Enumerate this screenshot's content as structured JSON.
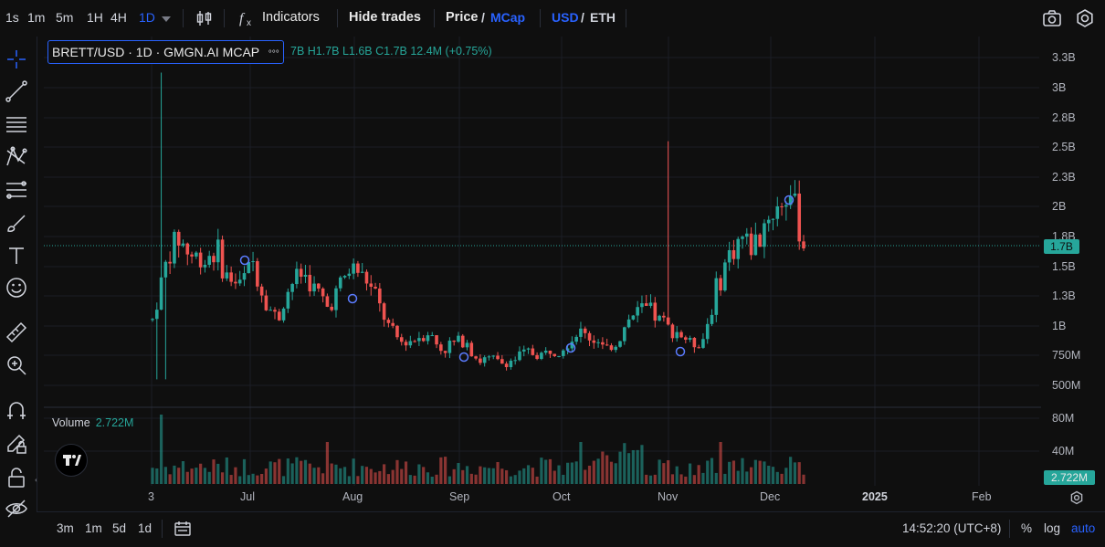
{
  "toolbar": {
    "intervals": [
      "1s",
      "1m",
      "5m",
      "1H",
      "4H",
      "1D"
    ],
    "active_interval": "1D",
    "indicators_label": "Indicators",
    "hide_trades_label": "Hide trades",
    "price_label": "Price",
    "mcap_label": "MCap",
    "usd_label": "USD",
    "eth_label": "ETH",
    "slash": "/"
  },
  "legend": {
    "symbol": "BRETT/USD · 1D · GMGN.AI MCAP",
    "more": "°°°",
    "ohlc": "7B H1.7B L1.6B C1.7B 12.4M (+0.75%)"
  },
  "price_axis": {
    "ticks": [
      "3.3B",
      "3B",
      "2.8B",
      "2.5B",
      "2.3B",
      "2B",
      "1.8B",
      "1.5B",
      "1.3B",
      "1B",
      "750M",
      "500M"
    ],
    "current_price": "1.7B"
  },
  "volume": {
    "label": "Volume",
    "value": "2.722M",
    "ticks": [
      "80M",
      "40M"
    ],
    "current_tag": "2.722M"
  },
  "time_axis": {
    "labels": [
      "3",
      "Jul",
      "Aug",
      "Sep",
      "Oct",
      "Nov",
      "Dec",
      "2025",
      "Feb"
    ]
  },
  "bottom_bar": {
    "ranges": [
      "3m",
      "1m",
      "5d",
      "1d"
    ],
    "time": "14:52:20 (UTC+8)",
    "percent": "%",
    "log": "log",
    "auto": "auto"
  },
  "colors": {
    "up": "#26a69a",
    "down": "#ef5350",
    "accent": "#2962ff",
    "background": "#0f0f0f"
  },
  "icons": [
    "crosshair-icon",
    "trendline-icon",
    "horizontal-lines-icon",
    "pattern-icon",
    "fib-icon",
    "brush-icon",
    "text-icon",
    "emoji-icon",
    "ruler-icon",
    "zoom-icon",
    "magnet-icon",
    "lock-draw-icon",
    "lock-icon",
    "eye-icon",
    "camera-icon",
    "settings-icon",
    "candle-style-icon",
    "calendar-icon"
  ],
  "chart_data": {
    "type": "candlestick",
    "title": "BRETT/USD · 1D · GMGN.AI MCAP",
    "y_unit": "market cap (USD)",
    "ylim": [
      0.4,
      3.42
    ],
    "y_scale": "log",
    "grid": true,
    "x_labels": [
      "3",
      "Jul",
      "Aug",
      "Sep",
      "Oct",
      "Nov",
      "Dec",
      "2025",
      "Feb"
    ],
    "series_close_approx_B": [
      1.05,
      1.5,
      1.75,
      1.6,
      1.55,
      1.65,
      1.4,
      1.35,
      1.55,
      1.2,
      1.05,
      1.35,
      1.45,
      1.3,
      1.15,
      1.35,
      1.5,
      1.4,
      1.2,
      0.95,
      0.85,
      0.9,
      0.95,
      0.8,
      0.85,
      0.9,
      0.7,
      0.72,
      0.68,
      0.72,
      0.78,
      0.75,
      0.8,
      0.85,
      0.95,
      0.9,
      0.8,
      0.85,
      1.05,
      1.15,
      1.1,
      1.0,
      0.95,
      0.85,
      0.9,
      1.3,
      1.6,
      1.75,
      1.65,
      1.9,
      2.0,
      2.1,
      1.7
    ]
  }
}
